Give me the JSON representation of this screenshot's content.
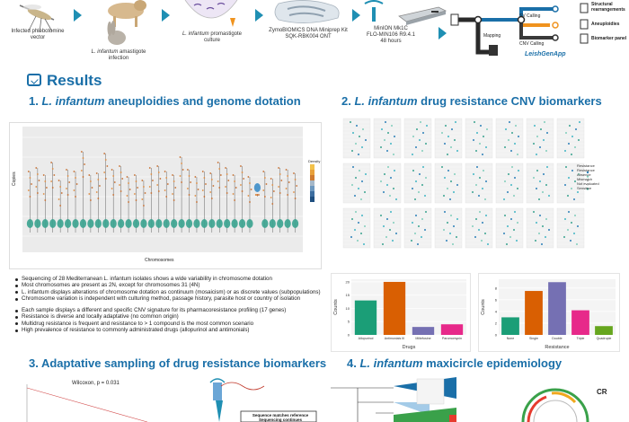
{
  "pipeline": {
    "steps": [
      {
        "caption": "Infected phlebotomine vector"
      },
      {
        "caption_prefix": "L. infantum",
        "caption_suffix": "amastigote infection"
      },
      {
        "caption_prefix": "L. infantum",
        "caption_suffix": "promastigote culture"
      },
      {
        "caption_line1": "ZymoBIOMICS DNA Miniprep Kit",
        "caption_line2": "SQK-RBK004 ONT"
      },
      {
        "caption_line1": "MinION Mk1C",
        "caption_line2": "FLO-MIN106 R9.4.1",
        "caption_line3": "48 hours"
      }
    ],
    "app": {
      "name": "LeishGenApp",
      "stages": [
        "Mapping",
        "SV Calling",
        "CNV Calling"
      ],
      "outputs": [
        "Structural rearrangements",
        "Aneuploidies",
        "Biomarker panel"
      ]
    },
    "colors": {
      "accent": "#1f8fb3",
      "track_blue": "#1a6fa8",
      "track_orange": "#f0931e"
    }
  },
  "results_label": "Results",
  "sections": {
    "s1": {
      "num": "1.",
      "species": "L. infantum",
      "rest": "aneuploidies and genome dotation"
    },
    "s2": {
      "num": "2.",
      "species": "L. infantum",
      "rest": "drug resistance CNV biomarkers"
    },
    "s3": {
      "text": "3. Adaptative sampling of drug resistance biomarkers"
    },
    "s4": {
      "num": "4.",
      "species": "L. infantum",
      "rest": "maxicircle epidemiology"
    }
  },
  "violin": {
    "ylabel": "Copies",
    "xlabel": "Chromosomes",
    "legend_title": "Density"
  },
  "bullets_a": [
    "Sequencing of 28 Mediterranean L. infantum isolates shows a wide variability in chromosome dotation",
    "Most chromosomes are present as 2N, except for chromosomes 31 (4N)",
    "L. infantum displays alterations of chromosome dotation as continuum (mosaicism) or as discrete values (subpopulations)",
    "Chromosome variation is independent with culturing method, passage history, parasite host or country of isolation"
  ],
  "bullets_b": [
    "Each sample displays a different and specific CNV signature for its pharmacoresistance profiling (17 genes)",
    "Resistance is diverse and locally adaptative (no common origin)",
    "Multidrug resistance is frequent and resistance to > 1 compound is the most common scenario",
    "High prevalence of resistance to commonly administrated drugs (allopurinol and antimonials)"
  ],
  "cnv_legend": {
    "title": "Resistance",
    "items": [
      "Resistance",
      "Absence",
      "Mismatch",
      "Not evaluated",
      "Sensitive"
    ]
  },
  "chart_data": [
    {
      "type": "bar",
      "xlabel": "Drugs",
      "ylabel": "Counts",
      "categories": [
        "Allopurinol",
        "Antimonials III",
        "Miltefosine",
        "Paromomycin"
      ],
      "values": [
        13,
        20,
        3,
        4
      ],
      "colors": [
        "#1b9e77",
        "#d95f02",
        "#7570b3",
        "#e7298a"
      ],
      "ylim": [
        0,
        21
      ],
      "yticks": [
        0,
        5,
        10,
        15,
        20
      ]
    },
    {
      "type": "bar",
      "xlabel": "Resistance",
      "ylabel": "Counts",
      "categories": [
        "None",
        "Single",
        "Double",
        "Triple",
        "Quadruple"
      ],
      "values": [
        3,
        7.5,
        9,
        4.2,
        1.5
      ],
      "colors": [
        "#1b9e77",
        "#d95f02",
        "#7570b3",
        "#e7298a",
        "#66a61e"
      ],
      "ylim": [
        0,
        9.5
      ],
      "yticks": [
        0,
        2,
        4,
        6,
        8
      ]
    }
  ],
  "wilcoxon": "Wilcoxon, p = 0.031",
  "sequence_box": {
    "line1": "Sequence matches reference",
    "line2": "Sequencing continues"
  },
  "cr_label": "CR"
}
